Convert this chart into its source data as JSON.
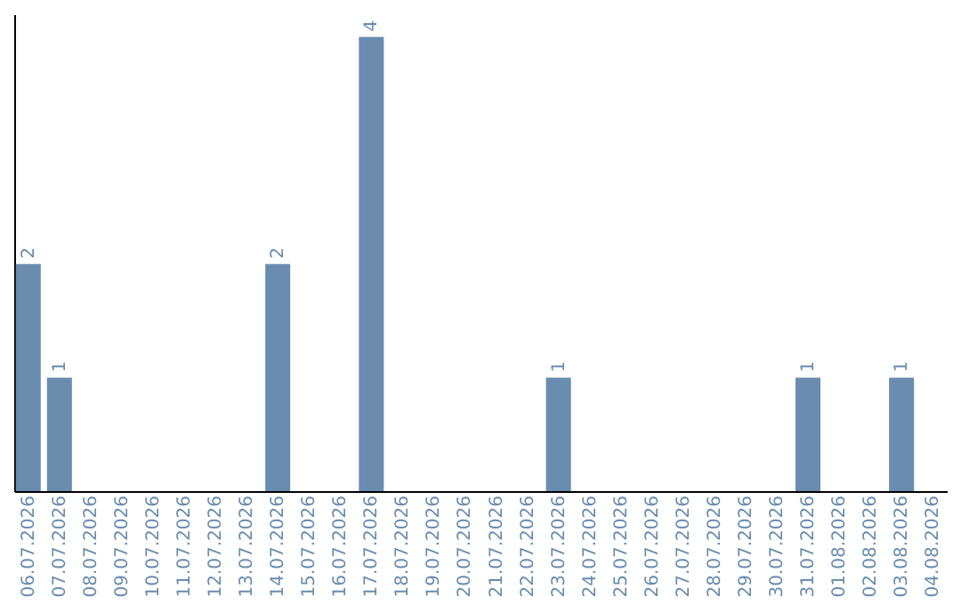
{
  "chart_data": {
    "type": "bar",
    "categories": [
      "06.07.2026",
      "07.07.2026",
      "08.07.2026",
      "09.07.2026",
      "10.07.2026",
      "11.07.2026",
      "12.07.2026",
      "13.07.2026",
      "14.07.2026",
      "15.07.2026",
      "16.07.2026",
      "17.07.2026",
      "18.07.2026",
      "19.07.2026",
      "20.07.2026",
      "21.07.2026",
      "22.07.2026",
      "23.07.2026",
      "24.07.2026",
      "25.07.2026",
      "26.07.2026",
      "27.07.2026",
      "28.07.2026",
      "29.07.2026",
      "30.07.2026",
      "31.07.2026",
      "01.08.2026",
      "02.08.2026",
      "03.08.2026",
      "04.08.2026"
    ],
    "values": [
      2,
      1,
      0,
      0,
      0,
      0,
      0,
      0,
      2,
      0,
      0,
      4,
      0,
      0,
      0,
      0,
      0,
      1,
      0,
      0,
      0,
      0,
      0,
      0,
      0,
      1,
      0,
      0,
      1,
      0
    ],
    "value_labels": [
      "2",
      "1",
      null,
      null,
      null,
      null,
      null,
      null,
      "2",
      null,
      null,
      "4",
      null,
      null,
      null,
      null,
      null,
      "1",
      null,
      null,
      null,
      null,
      null,
      null,
      null,
      "1",
      null,
      null,
      "1",
      null
    ],
    "color": "#6a8caf",
    "ylim": [
      0,
      4.2
    ],
    "tick_labels": "x",
    "grid": false
  }
}
